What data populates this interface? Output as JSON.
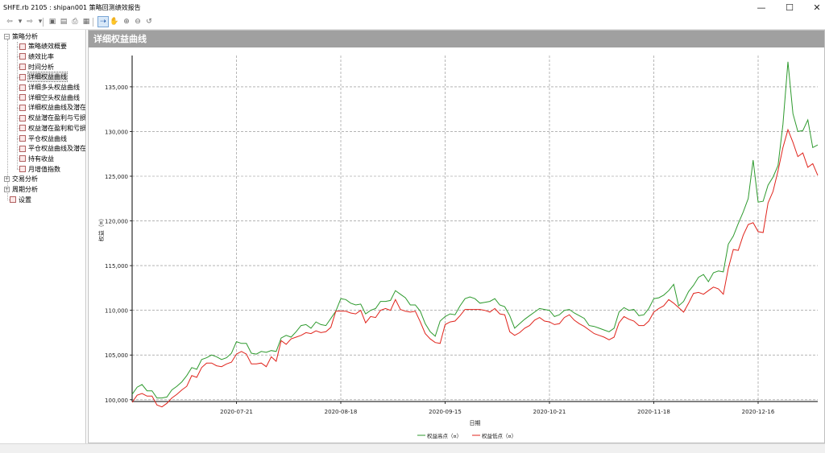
{
  "window": {
    "title": "SHFE.rb 2105 : shipan001 策略回测绩效报告",
    "min_glyph": "—",
    "max_glyph": "☐",
    "close_glyph": "✕"
  },
  "toolbar": {
    "icons": [
      "back-arrow-icon",
      "dropdown-icon",
      "forward-arrow-icon",
      "dropdown-icon",
      "save-icon",
      "copy-icon",
      "print-icon",
      "export-icon",
      "pointer-icon",
      "hand-pan-icon",
      "zoom-in-icon",
      "zoom-out-icon",
      "refresh-icon"
    ],
    "glyphs": [
      "⇦",
      "▾",
      "⇨",
      "▾",
      "▣",
      "▤",
      "⎙",
      "▦",
      "⇢",
      "✋",
      "⊕",
      "⊖",
      "↺"
    ]
  },
  "sidebar": {
    "tree": [
      {
        "label": "策略分析",
        "expander": "−",
        "level": 0
      },
      {
        "label": "策略绩效概要",
        "level": 1
      },
      {
        "label": "绩效比率",
        "level": 1
      },
      {
        "label": "时间分析",
        "level": 1
      },
      {
        "label": "详细权益曲线",
        "level": 1,
        "selected": true
      },
      {
        "label": "详细多头权益曲线",
        "level": 1
      },
      {
        "label": "详细空头权益曲线",
        "level": 1
      },
      {
        "label": "详细权益曲线及潜在",
        "level": 1
      },
      {
        "label": "权益潜在盈利与亏损",
        "level": 1
      },
      {
        "label": "权益潜在盈利和亏损",
        "level": 1
      },
      {
        "label": "平仓权益曲线",
        "level": 1
      },
      {
        "label": "平仓权益曲线及潜在",
        "level": 1
      },
      {
        "label": "持有收益",
        "level": 1
      },
      {
        "label": "月增值指数",
        "level": 1
      },
      {
        "label": "交易分析",
        "expander": "+",
        "level": 0
      },
      {
        "label": "周期分析",
        "expander": "+",
        "level": 0
      },
      {
        "label": "设置",
        "level": 0
      }
    ],
    "scroll_left": "<",
    "scroll_right": ">"
  },
  "panel": {
    "title": "详细权益曲线"
  },
  "colors": {
    "high_series": "#2e9a2e",
    "low_series": "#e0241c",
    "header_bg": "#a0a0a0"
  },
  "chart_data": {
    "type": "line",
    "title": "详细权益曲线",
    "xlabel": "日期",
    "ylabel": "权益（¤）",
    "x_tick_labels": [
      "2020-07-21",
      "2020-08-18",
      "2020-09-15",
      "2020-10-21",
      "2020-11-18",
      "2020-12-16"
    ],
    "y_tick_labels": [
      "100,000",
      "105,000",
      "110,000",
      "115,000",
      "120,000",
      "125,000",
      "130,000",
      "135,000"
    ],
    "y_ticks": [
      100000,
      105000,
      110000,
      115000,
      120000,
      125000,
      130000,
      135000
    ],
    "ylim": [
      99800,
      138500
    ],
    "grid": true,
    "legend_position": "bottom-center",
    "x_index": [
      0,
      1,
      2,
      3,
      4,
      5,
      6,
      7,
      8,
      9,
      10,
      11,
      12,
      13,
      14,
      15,
      16,
      17,
      18,
      19,
      20,
      21,
      22,
      23,
      24,
      25,
      26,
      27,
      28,
      29,
      30,
      31,
      32,
      33,
      34,
      35,
      36,
      37,
      38,
      39,
      40,
      41,
      42,
      43,
      44,
      45,
      46,
      47,
      48,
      49,
      50,
      51,
      52,
      53,
      54,
      55,
      56,
      57,
      58,
      59,
      60,
      61,
      62,
      63,
      64,
      65,
      66,
      67,
      68,
      69,
      70,
      71,
      72,
      73,
      74,
      75,
      76,
      77,
      78,
      79,
      80,
      81,
      82,
      83,
      84,
      85,
      86,
      87,
      88,
      89,
      90,
      91,
      92,
      93,
      94,
      95,
      96,
      97,
      98,
      99,
      100,
      101,
      102,
      103,
      104,
      105,
      106,
      107,
      108,
      109,
      110,
      111,
      112,
      113,
      114,
      115,
      116,
      117,
      118,
      119,
      120,
      121,
      122,
      123,
      124,
      125,
      126,
      127,
      128,
      129,
      130,
      131,
      132,
      133,
      134,
      135,
      136,
      137,
      138
    ],
    "x_tick_index": [
      21,
      42,
      63,
      84,
      105,
      126
    ],
    "series": [
      {
        "name": "权益高点（¤）",
        "values": [
          100600,
          101400,
          101700,
          101000,
          101000,
          100200,
          100200,
          100300,
          101100,
          101500,
          102000,
          102700,
          103600,
          103400,
          104500,
          104700,
          105000,
          104800,
          104500,
          104700,
          105200,
          106500,
          106300,
          106300,
          105200,
          105100,
          105400,
          105300,
          105500,
          105400,
          106900,
          107200,
          107000,
          107600,
          108300,
          108400,
          108000,
          108700,
          108400,
          108300,
          109100,
          109900,
          111300,
          111200,
          110800,
          110600,
          110700,
          109600,
          110000,
          110200,
          111000,
          111000,
          111100,
          112200,
          111800,
          111400,
          110600,
          110600,
          109900,
          108500,
          107600,
          107100,
          108800,
          109300,
          109600,
          109500,
          110500,
          111300,
          111500,
          111300,
          110800,
          110900,
          111000,
          111300,
          110600,
          110400,
          109400,
          108000,
          108500,
          109000,
          109400,
          109800,
          110200,
          110100,
          110000,
          109300,
          109500,
          110000,
          110100,
          109700,
          109400,
          109100,
          108300,
          108200,
          108000,
          107800,
          107600,
          108000,
          109800,
          110300,
          110000,
          110100,
          109400,
          109500,
          110200,
          111300,
          111400,
          111700,
          112200,
          112900,
          110500,
          111000,
          112100,
          112800,
          113700,
          114000,
          113200,
          114200,
          114400,
          114300,
          117400,
          118300,
          119700,
          121000,
          122500,
          126800,
          122100,
          122200,
          124000,
          124900,
          126200,
          130800,
          137800,
          132000,
          130000,
          130100,
          131300,
          128200,
          128500
        ]
      },
      {
        "name": "权益低点（¤）",
        "values": [
          99700,
          100500,
          100700,
          100400,
          100400,
          99400,
          99200,
          99600,
          100200,
          100600,
          101100,
          101500,
          102700,
          102500,
          103600,
          104100,
          104100,
          103800,
          103700,
          104000,
          104200,
          105100,
          105400,
          105100,
          104000,
          104000,
          104100,
          103700,
          104800,
          104300,
          106600,
          106200,
          106800,
          107000,
          107200,
          107500,
          107400,
          107700,
          107500,
          107600,
          108100,
          109900,
          109900,
          109900,
          109700,
          109600,
          110000,
          108600,
          109300,
          109200,
          110000,
          110200,
          110000,
          111200,
          110100,
          109900,
          109800,
          109900,
          108700,
          107400,
          106800,
          106400,
          106300,
          108400,
          108700,
          108800,
          109400,
          110100,
          110100,
          110100,
          110100,
          110000,
          109800,
          110200,
          109600,
          109500,
          107600,
          107200,
          107500,
          108000,
          108300,
          108900,
          109200,
          108800,
          108700,
          108400,
          108500,
          109200,
          109500,
          108900,
          108500,
          108200,
          107800,
          107400,
          107200,
          107000,
          106700,
          107000,
          108600,
          109300,
          109000,
          108800,
          108300,
          108300,
          108800,
          109800,
          110200,
          110500,
          111200,
          110800,
          110300,
          109800,
          110800,
          111900,
          112000,
          111800,
          112200,
          112600,
          112400,
          111800,
          114700,
          116800,
          116700,
          118400,
          119600,
          119800,
          118800,
          118700,
          122000,
          123300,
          125600,
          128200,
          130200,
          128800,
          127200,
          127600,
          126000,
          126400,
          125100
        ]
      }
    ]
  }
}
